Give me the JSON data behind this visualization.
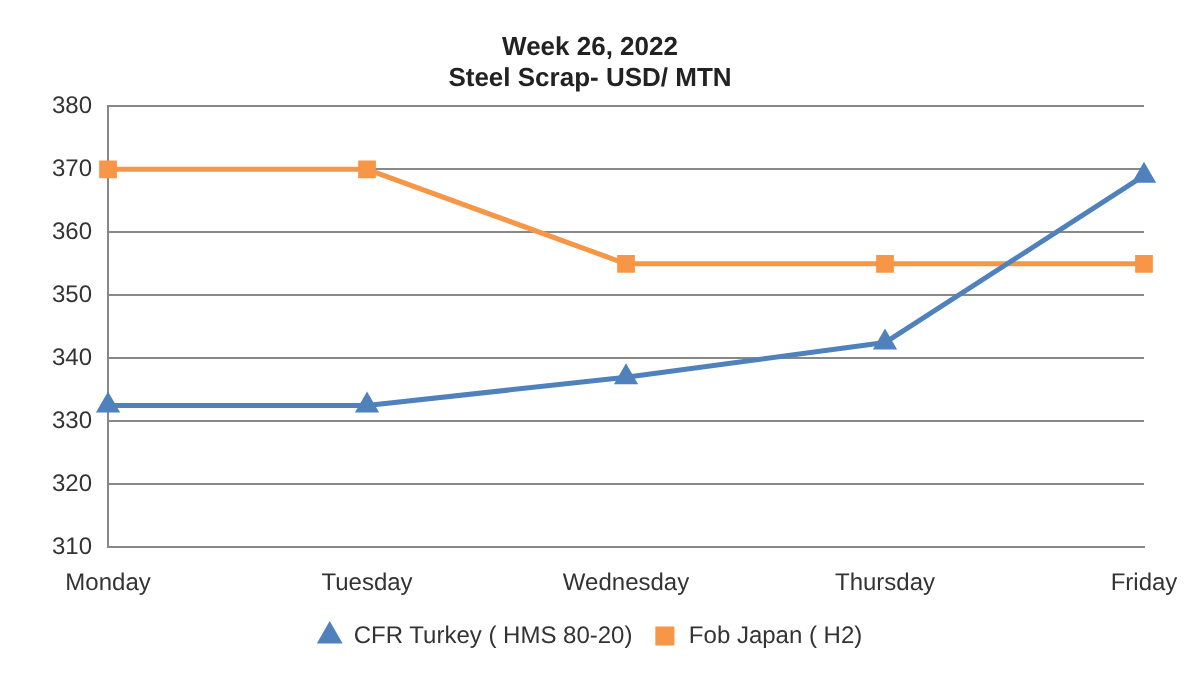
{
  "chart_data": {
    "type": "line",
    "title": [
      "Week 26, 2022",
      "Steel Scrap- USD/ MTN"
    ],
    "categories": [
      "Monday",
      "Tuesday",
      "Wednesday",
      "Thursday",
      "Friday"
    ],
    "series": [
      {
        "name": "CFR Turkey ( HMS 80-20)",
        "color": "#4f81bd",
        "marker": "triangle",
        "values": [
          332.5,
          332.5,
          337,
          342.5,
          369
        ]
      },
      {
        "name": "Fob Japan ( H2)",
        "color": "#f79646",
        "marker": "square",
        "values": [
          370,
          370,
          355,
          355,
          355
        ]
      }
    ],
    "ylim": [
      310,
      380
    ],
    "yticks": [
      310,
      320,
      330,
      340,
      350,
      360,
      370,
      380
    ],
    "grid": "y",
    "legend": "bottom",
    "line_style": "solid"
  }
}
